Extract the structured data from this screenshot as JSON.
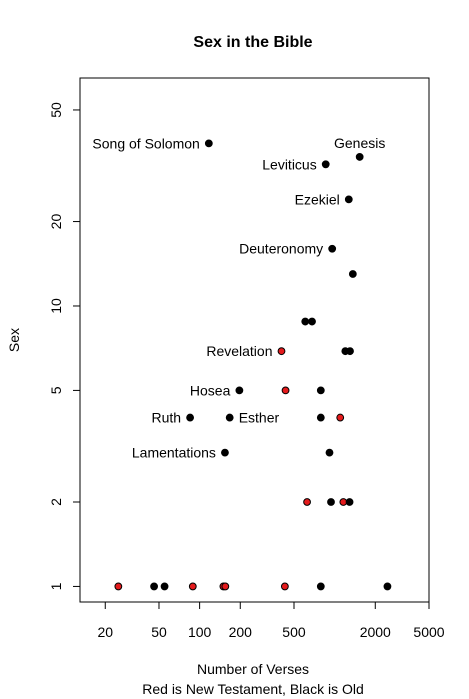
{
  "chart_data": {
    "type": "scatter",
    "title": "Sex in the Bible",
    "xlabel": "Number of Verses",
    "xlabel_sub": "Red is New Testament, Black is Old",
    "ylabel": "Sex",
    "x_scale": "log",
    "y_scale": "log",
    "xlim": [
      13,
      5000
    ],
    "ylim": [
      0.88,
      65
    ],
    "x_ticks": [
      20,
      50,
      100,
      200,
      500,
      2000,
      5000
    ],
    "x_tick_labels": [
      "20",
      "50",
      "100",
      "200",
      "500",
      "2000",
      "5000"
    ],
    "y_ticks": [
      1,
      2,
      5,
      10,
      20,
      50
    ],
    "y_tick_labels": [
      "1",
      "2",
      "5",
      "10",
      "20",
      "50"
    ],
    "grid": false,
    "colors": {
      "new_testament": "#e41a1c",
      "old_testament": "#000000"
    },
    "points": [
      {
        "x": 117,
        "y": 38,
        "testament": "old",
        "label": "Song of Solomon",
        "label_pos": "left"
      },
      {
        "x": 1533,
        "y": 34,
        "testament": "old",
        "label": "Genesis",
        "label_pos": "above"
      },
      {
        "x": 859,
        "y": 32,
        "testament": "old",
        "label": "Leviticus",
        "label_pos": "left"
      },
      {
        "x": 1273,
        "y": 24,
        "testament": "old",
        "label": "Ezekiel",
        "label_pos": "left"
      },
      {
        "x": 959,
        "y": 16,
        "testament": "old",
        "label": "Deuteronomy",
        "label_pos": "left"
      },
      {
        "x": 1364,
        "y": 13,
        "testament": "old",
        "label": "",
        "label_pos": ""
      },
      {
        "x": 606,
        "y": 8.8,
        "testament": "old",
        "label": "",
        "label_pos": ""
      },
      {
        "x": 680,
        "y": 8.8,
        "testament": "old",
        "label": "",
        "label_pos": ""
      },
      {
        "x": 1200,
        "y": 6.9,
        "testament": "old",
        "label": "",
        "label_pos": ""
      },
      {
        "x": 1300,
        "y": 6.9,
        "testament": "old",
        "label": "",
        "label_pos": ""
      },
      {
        "x": 404,
        "y": 6.9,
        "testament": "new",
        "label": "Revelation",
        "label_pos": "left"
      },
      {
        "x": 197,
        "y": 5,
        "testament": "old",
        "label": "Hosea",
        "label_pos": "left"
      },
      {
        "x": 433,
        "y": 5,
        "testament": "new",
        "label": "",
        "label_pos": ""
      },
      {
        "x": 790,
        "y": 5,
        "testament": "old",
        "label": "",
        "label_pos": ""
      },
      {
        "x": 85,
        "y": 4,
        "testament": "old",
        "label": "Ruth",
        "label_pos": "left"
      },
      {
        "x": 167,
        "y": 4,
        "testament": "old",
        "label": "Esther",
        "label_pos": "right"
      },
      {
        "x": 790,
        "y": 4,
        "testament": "old",
        "label": "",
        "label_pos": ""
      },
      {
        "x": 1100,
        "y": 4,
        "testament": "new",
        "label": "",
        "label_pos": ""
      },
      {
        "x": 154,
        "y": 3,
        "testament": "old",
        "label": "Lamentations",
        "label_pos": "left"
      },
      {
        "x": 916,
        "y": 3,
        "testament": "old",
        "label": "",
        "label_pos": ""
      },
      {
        "x": 625,
        "y": 2,
        "testament": "new",
        "label": "",
        "label_pos": ""
      },
      {
        "x": 940,
        "y": 2,
        "testament": "old",
        "label": "",
        "label_pos": ""
      },
      {
        "x": 1160,
        "y": 2,
        "testament": "new",
        "label": "",
        "label_pos": ""
      },
      {
        "x": 1290,
        "y": 2,
        "testament": "old",
        "label": "",
        "label_pos": ""
      },
      {
        "x": 25,
        "y": 1,
        "testament": "new",
        "label": "",
        "label_pos": ""
      },
      {
        "x": 46,
        "y": 1,
        "testament": "old",
        "label": "",
        "label_pos": ""
      },
      {
        "x": 55,
        "y": 1,
        "testament": "old",
        "label": "",
        "label_pos": ""
      },
      {
        "x": 89,
        "y": 1,
        "testament": "new",
        "label": "",
        "label_pos": ""
      },
      {
        "x": 150,
        "y": 1,
        "testament": "new",
        "label": "",
        "label_pos": ""
      },
      {
        "x": 155,
        "y": 1,
        "testament": "new",
        "label": "",
        "label_pos": ""
      },
      {
        "x": 428,
        "y": 1,
        "testament": "new",
        "label": "",
        "label_pos": ""
      },
      {
        "x": 790,
        "y": 1,
        "testament": "old",
        "label": "",
        "label_pos": ""
      },
      {
        "x": 2461,
        "y": 1,
        "testament": "old",
        "label": "",
        "label_pos": ""
      }
    ]
  }
}
